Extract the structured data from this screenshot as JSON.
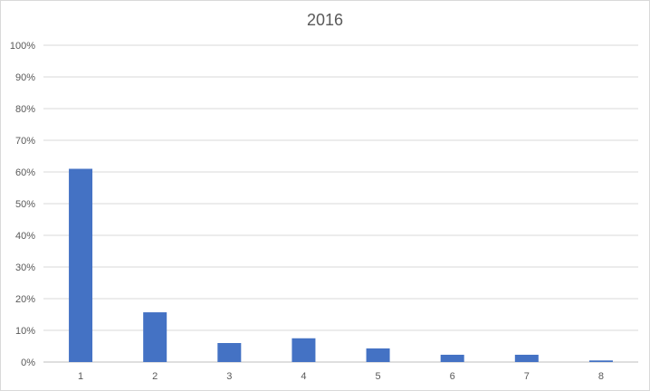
{
  "chart_data": {
    "type": "bar",
    "title": "2016",
    "xlabel": "",
    "ylabel": "",
    "categories": [
      "1",
      "2",
      "3",
      "4",
      "5",
      "6",
      "7",
      "8"
    ],
    "values": [
      61,
      15.7,
      6,
      7.5,
      4.3,
      2.3,
      2.3,
      0.5
    ],
    "ylim": [
      0,
      100
    ],
    "yticks": [
      "0%",
      "10%",
      "20%",
      "30%",
      "40%",
      "50%",
      "60%",
      "70%",
      "80%",
      "90%",
      "100%"
    ],
    "grid": true,
    "legend": "none",
    "bar_color": "#4472c4",
    "grid_color": "#d9d9d9"
  }
}
